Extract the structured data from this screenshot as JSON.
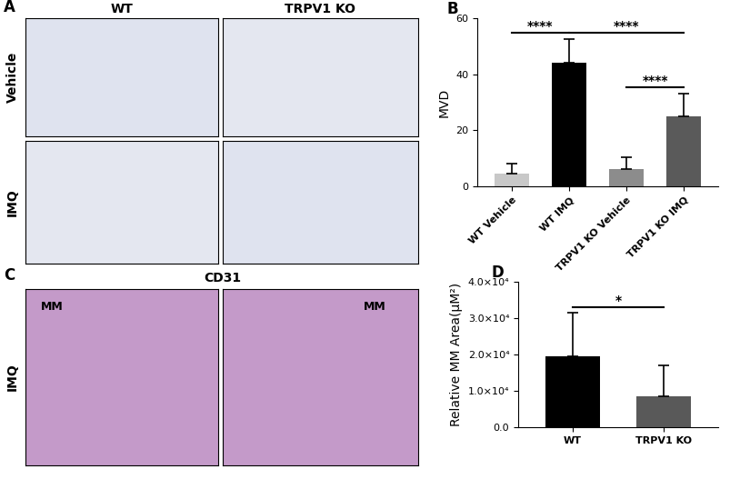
{
  "chart_data": [
    {
      "type": "bar",
      "panel": "B",
      "categories": [
        "WT Vehicle",
        "WT IMQ",
        "TRPV1 KO Vehicle",
        "TRPV1 KO IMQ"
      ],
      "values": [
        4.5,
        44,
        6,
        25
      ],
      "errors": [
        3.5,
        8.5,
        4.5,
        8
      ],
      "colors": [
        "#c8c8c8",
        "#000000",
        "#8c8c8c",
        "#5a5a5a"
      ],
      "y_label": "MVD",
      "ylim": [
        0,
        60
      ],
      "yticks": [
        0,
        20,
        40,
        60
      ],
      "significance": [
        {
          "from": 0,
          "to": 1,
          "label": "****"
        },
        {
          "from": 1,
          "to": 3,
          "label": "****"
        },
        {
          "from": 2,
          "to": 3,
          "label": "****"
        }
      ]
    },
    {
      "type": "bar",
      "panel": "D",
      "categories": [
        "WT",
        "TRPV1 KO"
      ],
      "values": [
        19500,
        8500
      ],
      "errors": [
        12000,
        8500
      ],
      "colors": [
        "#000000",
        "#595959"
      ],
      "y_label": "Relative MM Area(μM²)",
      "ylim": [
        0,
        40000
      ],
      "yticks": [
        {
          "value": 0,
          "label": "0.0"
        },
        {
          "value": 10000,
          "label": "1.0×10⁴"
        },
        {
          "value": 20000,
          "label": "2.0×10⁴"
        },
        {
          "value": 30000,
          "label": "3.0×10⁴"
        },
        {
          "value": 40000,
          "label": "4.0×10⁴"
        }
      ],
      "significance": [
        {
          "from": 0,
          "to": 1,
          "label": "*"
        }
      ]
    }
  ],
  "image_panels": [
    {
      "panel": "A",
      "columns": [
        "WT",
        "TRPV1 KO"
      ],
      "rows": [
        "Vehicle",
        "IMQ"
      ]
    },
    {
      "panel": "C",
      "title": "CD31",
      "rows": [
        "IMQ"
      ],
      "image_labels": [
        "MM",
        "MM"
      ]
    }
  ]
}
